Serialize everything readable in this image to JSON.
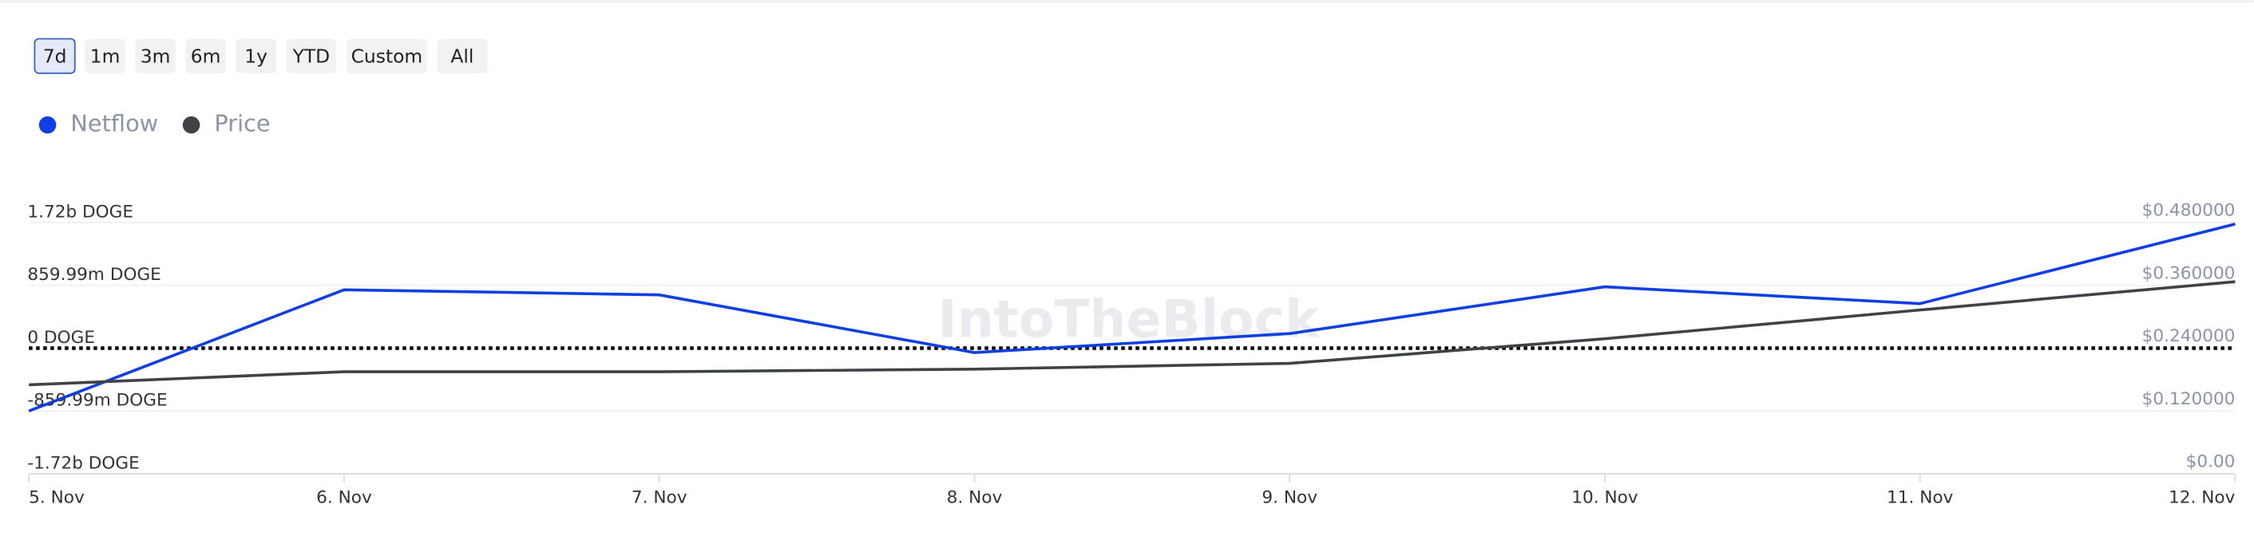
{
  "range_buttons": [
    "7d",
    "1m",
    "3m",
    "6m",
    "1y",
    "YTD",
    "Custom",
    "All"
  ],
  "watermark": "IntoTheBlock",
  "chart_data": {
    "type": "line",
    "categories": [
      "5. Nov",
      "6. Nov",
      "7. Nov",
      "8. Nov",
      "9. Nov",
      "10. Nov",
      "11. Nov",
      "12. Nov"
    ],
    "series": [
      {
        "name": "Netflow",
        "color": "#0f3fe0",
        "axis": "y",
        "values": [
          -860000000,
          800000000,
          730000000,
          -60000000,
          200000000,
          840000000,
          610000000,
          1700000000
        ]
      },
      {
        "name": "Price",
        "color": "#3f4247",
        "axis": "y2",
        "values": [
          0.17,
          0.195,
          0.195,
          0.2,
          0.211,
          0.258,
          0.313,
          0.367
        ]
      }
    ],
    "ylim": [
      -1720000000,
      1720000000
    ],
    "yticks": [
      {
        "value": -1720000000,
        "label": "-1.72b DOGE"
      },
      {
        "value": -859990000,
        "label": "-859.99m DOGE"
      },
      {
        "value": 0,
        "label": "0 DOGE"
      },
      {
        "value": 859990000,
        "label": "859.99m DOGE"
      },
      {
        "value": 1720000000,
        "label": "1.72b DOGE"
      }
    ],
    "y2lim": [
      0,
      0.48
    ],
    "y2ticks": [
      {
        "value": 0,
        "label": "$0.00"
      },
      {
        "value": 0.12,
        "label": "$0.120000"
      },
      {
        "value": 0.24,
        "label": "$0.240000"
      },
      {
        "value": 0.36,
        "label": "$0.360000"
      },
      {
        "value": 0.48,
        "label": "$0.480000"
      }
    ],
    "grid": true
  }
}
